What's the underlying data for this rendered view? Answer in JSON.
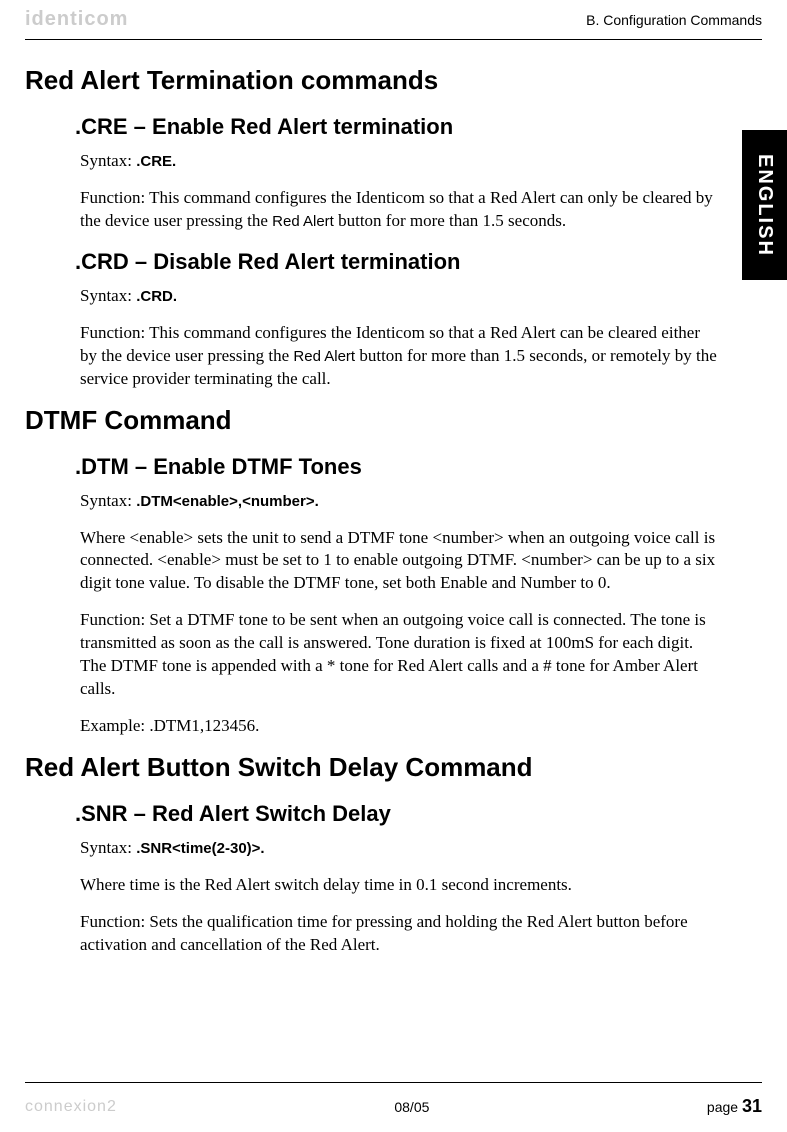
{
  "header": {
    "logo": "identicom",
    "section": "B. Configuration Commands"
  },
  "sideTab": "ENGLISH",
  "sections": {
    "s1": {
      "title": "Red Alert Termination commands",
      "cre": {
        "title": ".CRE – Enable Red Alert termination",
        "syntaxLabel": "Syntax: ",
        "syntaxValue": ".CRE.",
        "func1": "Function: This command configures the Identicom so that a Red Alert can only be cleared by the device user pressing the ",
        "funcBold": "Red Alert",
        "func2": " button for more than 1.5 seconds."
      },
      "crd": {
        "title": ".CRD – Disable Red Alert termination",
        "syntaxLabel": "Syntax: ",
        "syntaxValue": ".CRD.",
        "func1": "Function: This command configures the Identicom so that a Red Alert can be cleared either by the device user pressing the ",
        "funcBold": "Red Alert",
        "func2": " button for more than 1.5 seconds, or remotely by the service provider terminating the call."
      }
    },
    "s2": {
      "title": "DTMF Command",
      "dtm": {
        "title": ".DTM – Enable DTMF Tones",
        "syntaxLabel": "Syntax: ",
        "syntaxValue": ".DTM<enable>,<number>.",
        "where": "Where <enable> sets the unit to send a DTMF tone <number> when an outgoing voice call is connected. <enable> must be set to 1 to enable outgoing DTMF. <number> can be up to a six digit tone value. To disable the DTMF tone, set both Enable and Number to 0.",
        "func": "Function: Set a DTMF tone to be sent when an outgoing voice call is connected. The tone is transmitted as soon as the call is answered. Tone duration is fixed at 100mS for each digit. The DTMF tone is appended with a * tone for Red Alert calls and a # tone for Amber Alert calls.",
        "example": "Example: .DTM1,123456."
      }
    },
    "s3": {
      "title": "Red Alert Button Switch Delay Command",
      "snr": {
        "title": ".SNR – Red Alert Switch Delay",
        "syntaxLabel": "Syntax: ",
        "syntaxValue": ".SNR<time(2-30)>.",
        "where": "Where time is the Red Alert switch delay time in 0.1 second increments.",
        "func": "Function: Sets the qualification time for pressing and holding the Red Alert button before activation and cancellation of the Red Alert."
      }
    }
  },
  "footer": {
    "logo": "connexion2",
    "date": "08/05",
    "pageLabel": "page ",
    "pageNum": "31"
  }
}
